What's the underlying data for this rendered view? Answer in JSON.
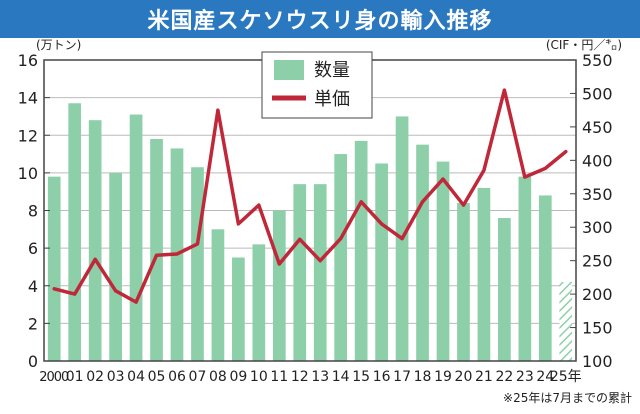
{
  "title": "米国産スケソウスリ身の輸入推移",
  "colors": {
    "title_bg": "#2a78c0",
    "bar": "#8ccfa8",
    "line": "#c0283a",
    "frame": "#444444",
    "grid": "#bbbbbb"
  },
  "chart_data": {
    "type": "bar+line",
    "title": "米国産スケソウスリ身の輸入推移",
    "left_unit_label": "(万トン)",
    "right_unit_label": "(CIF・円／㌔)",
    "footnote": "※25年は7月までの累計",
    "categories": [
      "2000",
      "01",
      "02",
      "03",
      "04",
      "05",
      "06",
      "07",
      "08",
      "09",
      "10",
      "11",
      "12",
      "13",
      "14",
      "15",
      "16",
      "17",
      "18",
      "19",
      "20",
      "21",
      "22",
      "23",
      "24",
      "25年"
    ],
    "left_axis": {
      "min": 0,
      "max": 16,
      "ticks": [
        "0",
        "2",
        "4",
        "6",
        "8",
        "10",
        "12",
        "14",
        "16"
      ]
    },
    "right_axis": {
      "min": 100,
      "max": 550,
      "ticks": [
        "100",
        "150",
        "200",
        "250",
        "300",
        "350",
        "400",
        "450",
        "500",
        "550"
      ]
    },
    "series": [
      {
        "name": "数量",
        "type": "bar",
        "axis": "left",
        "values": [
          9.8,
          13.7,
          12.8,
          10.0,
          13.1,
          11.8,
          11.3,
          10.3,
          7.0,
          5.5,
          6.2,
          8.0,
          9.4,
          9.4,
          11.0,
          11.7,
          10.5,
          13.0,
          11.5,
          10.6,
          8.4,
          9.2,
          7.6,
          9.8,
          8.8,
          4.2
        ],
        "partial_last": true
      },
      {
        "name": "単価",
        "type": "line",
        "axis": "right",
        "values": [
          208,
          200,
          252,
          205,
          188,
          258,
          260,
          275,
          475,
          305,
          333,
          245,
          282,
          250,
          283,
          338,
          305,
          283,
          338,
          372,
          333,
          385,
          505,
          375,
          388,
          413
        ]
      }
    ]
  }
}
